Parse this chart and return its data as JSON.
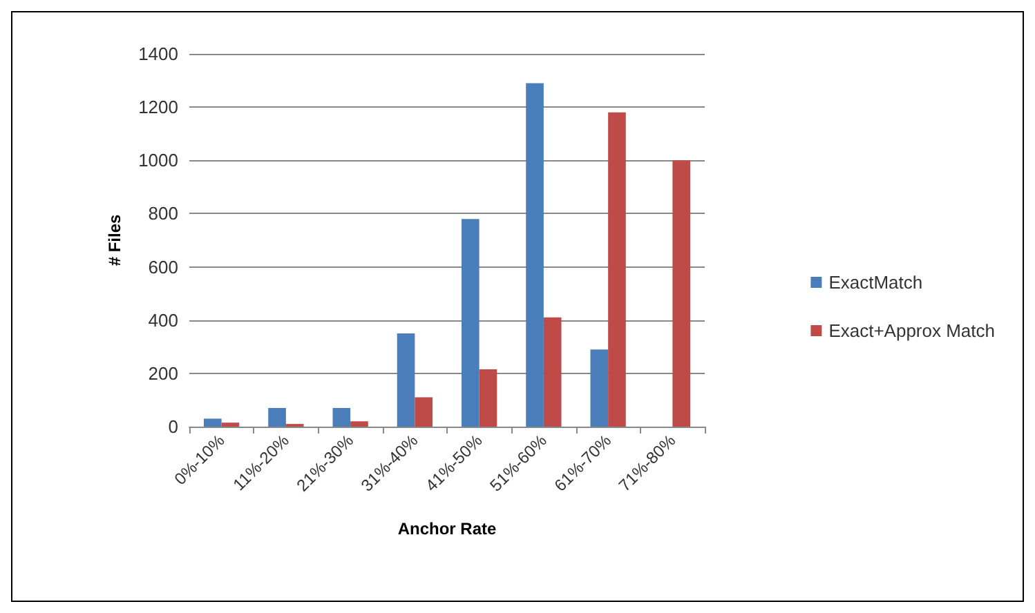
{
  "chart_data": {
    "type": "bar",
    "xlabel": "Anchor Rate",
    "ylabel": "# Files",
    "categories": [
      "0%-10%",
      "11%-20%",
      "21%-30%",
      "31%-40%",
      "41%-50%",
      "51%-60%",
      "61%-70%",
      "71%-80%"
    ],
    "series": [
      {
        "name": "ExactMatch",
        "color": "#4a7ebb",
        "values": [
          30,
          70,
          70,
          350,
          780,
          1290,
          290,
          null
        ]
      },
      {
        "name": "Exact+Approx Match",
        "color": "#be4b48",
        "values": [
          15,
          10,
          20,
          110,
          215,
          410,
          1180,
          1000
        ]
      }
    ],
    "ylim": [
      0,
      1400
    ],
    "yticks": [
      0,
      200,
      400,
      600,
      800,
      1000,
      1200,
      1400
    ],
    "grid": "y",
    "legend": "right"
  }
}
